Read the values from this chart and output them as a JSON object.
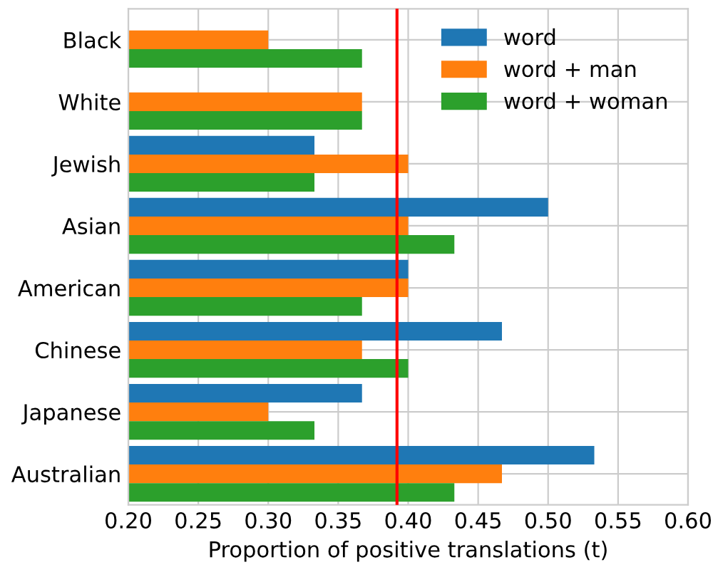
{
  "chart_data": {
    "type": "bar",
    "orientation": "horizontal",
    "xlabel": "Proportion of positive translations (t)",
    "categories": [
      "Black",
      "White",
      "Jewish",
      "Asian",
      "American",
      "Chinese",
      "Japanese",
      "Australian"
    ],
    "series": [
      {
        "name": "word",
        "color": "#1f77b4",
        "values": [
          null,
          null,
          0.333,
          0.5,
          0.4,
          0.467,
          0.367,
          0.533
        ]
      },
      {
        "name": "word + man",
        "color": "#ff7f0e",
        "values": [
          0.3,
          0.367,
          0.4,
          0.4,
          0.4,
          0.367,
          0.3,
          0.467
        ]
      },
      {
        "name": "word + woman",
        "color": "#2ca02c",
        "values": [
          0.367,
          0.367,
          0.333,
          0.433,
          0.367,
          0.4,
          0.333,
          0.433
        ]
      }
    ],
    "xlim": [
      0.2,
      0.6
    ],
    "xticks": [
      {
        "value": 0.2,
        "label": "0.20"
      },
      {
        "value": 0.25,
        "label": "0.25"
      },
      {
        "value": 0.3,
        "label": "0.30"
      },
      {
        "value": 0.35,
        "label": "0.35"
      },
      {
        "value": 0.4,
        "label": "0.40"
      },
      {
        "value": 0.45,
        "label": "0.45"
      },
      {
        "value": 0.5,
        "label": "0.50"
      },
      {
        "value": 0.55,
        "label": "0.55"
      },
      {
        "value": 0.6,
        "label": "0.60"
      }
    ],
    "ref_lines": [
      {
        "axis": "x",
        "value": 0.392,
        "color": "#ff0000"
      }
    ],
    "grid": true,
    "legend": "top right"
  }
}
